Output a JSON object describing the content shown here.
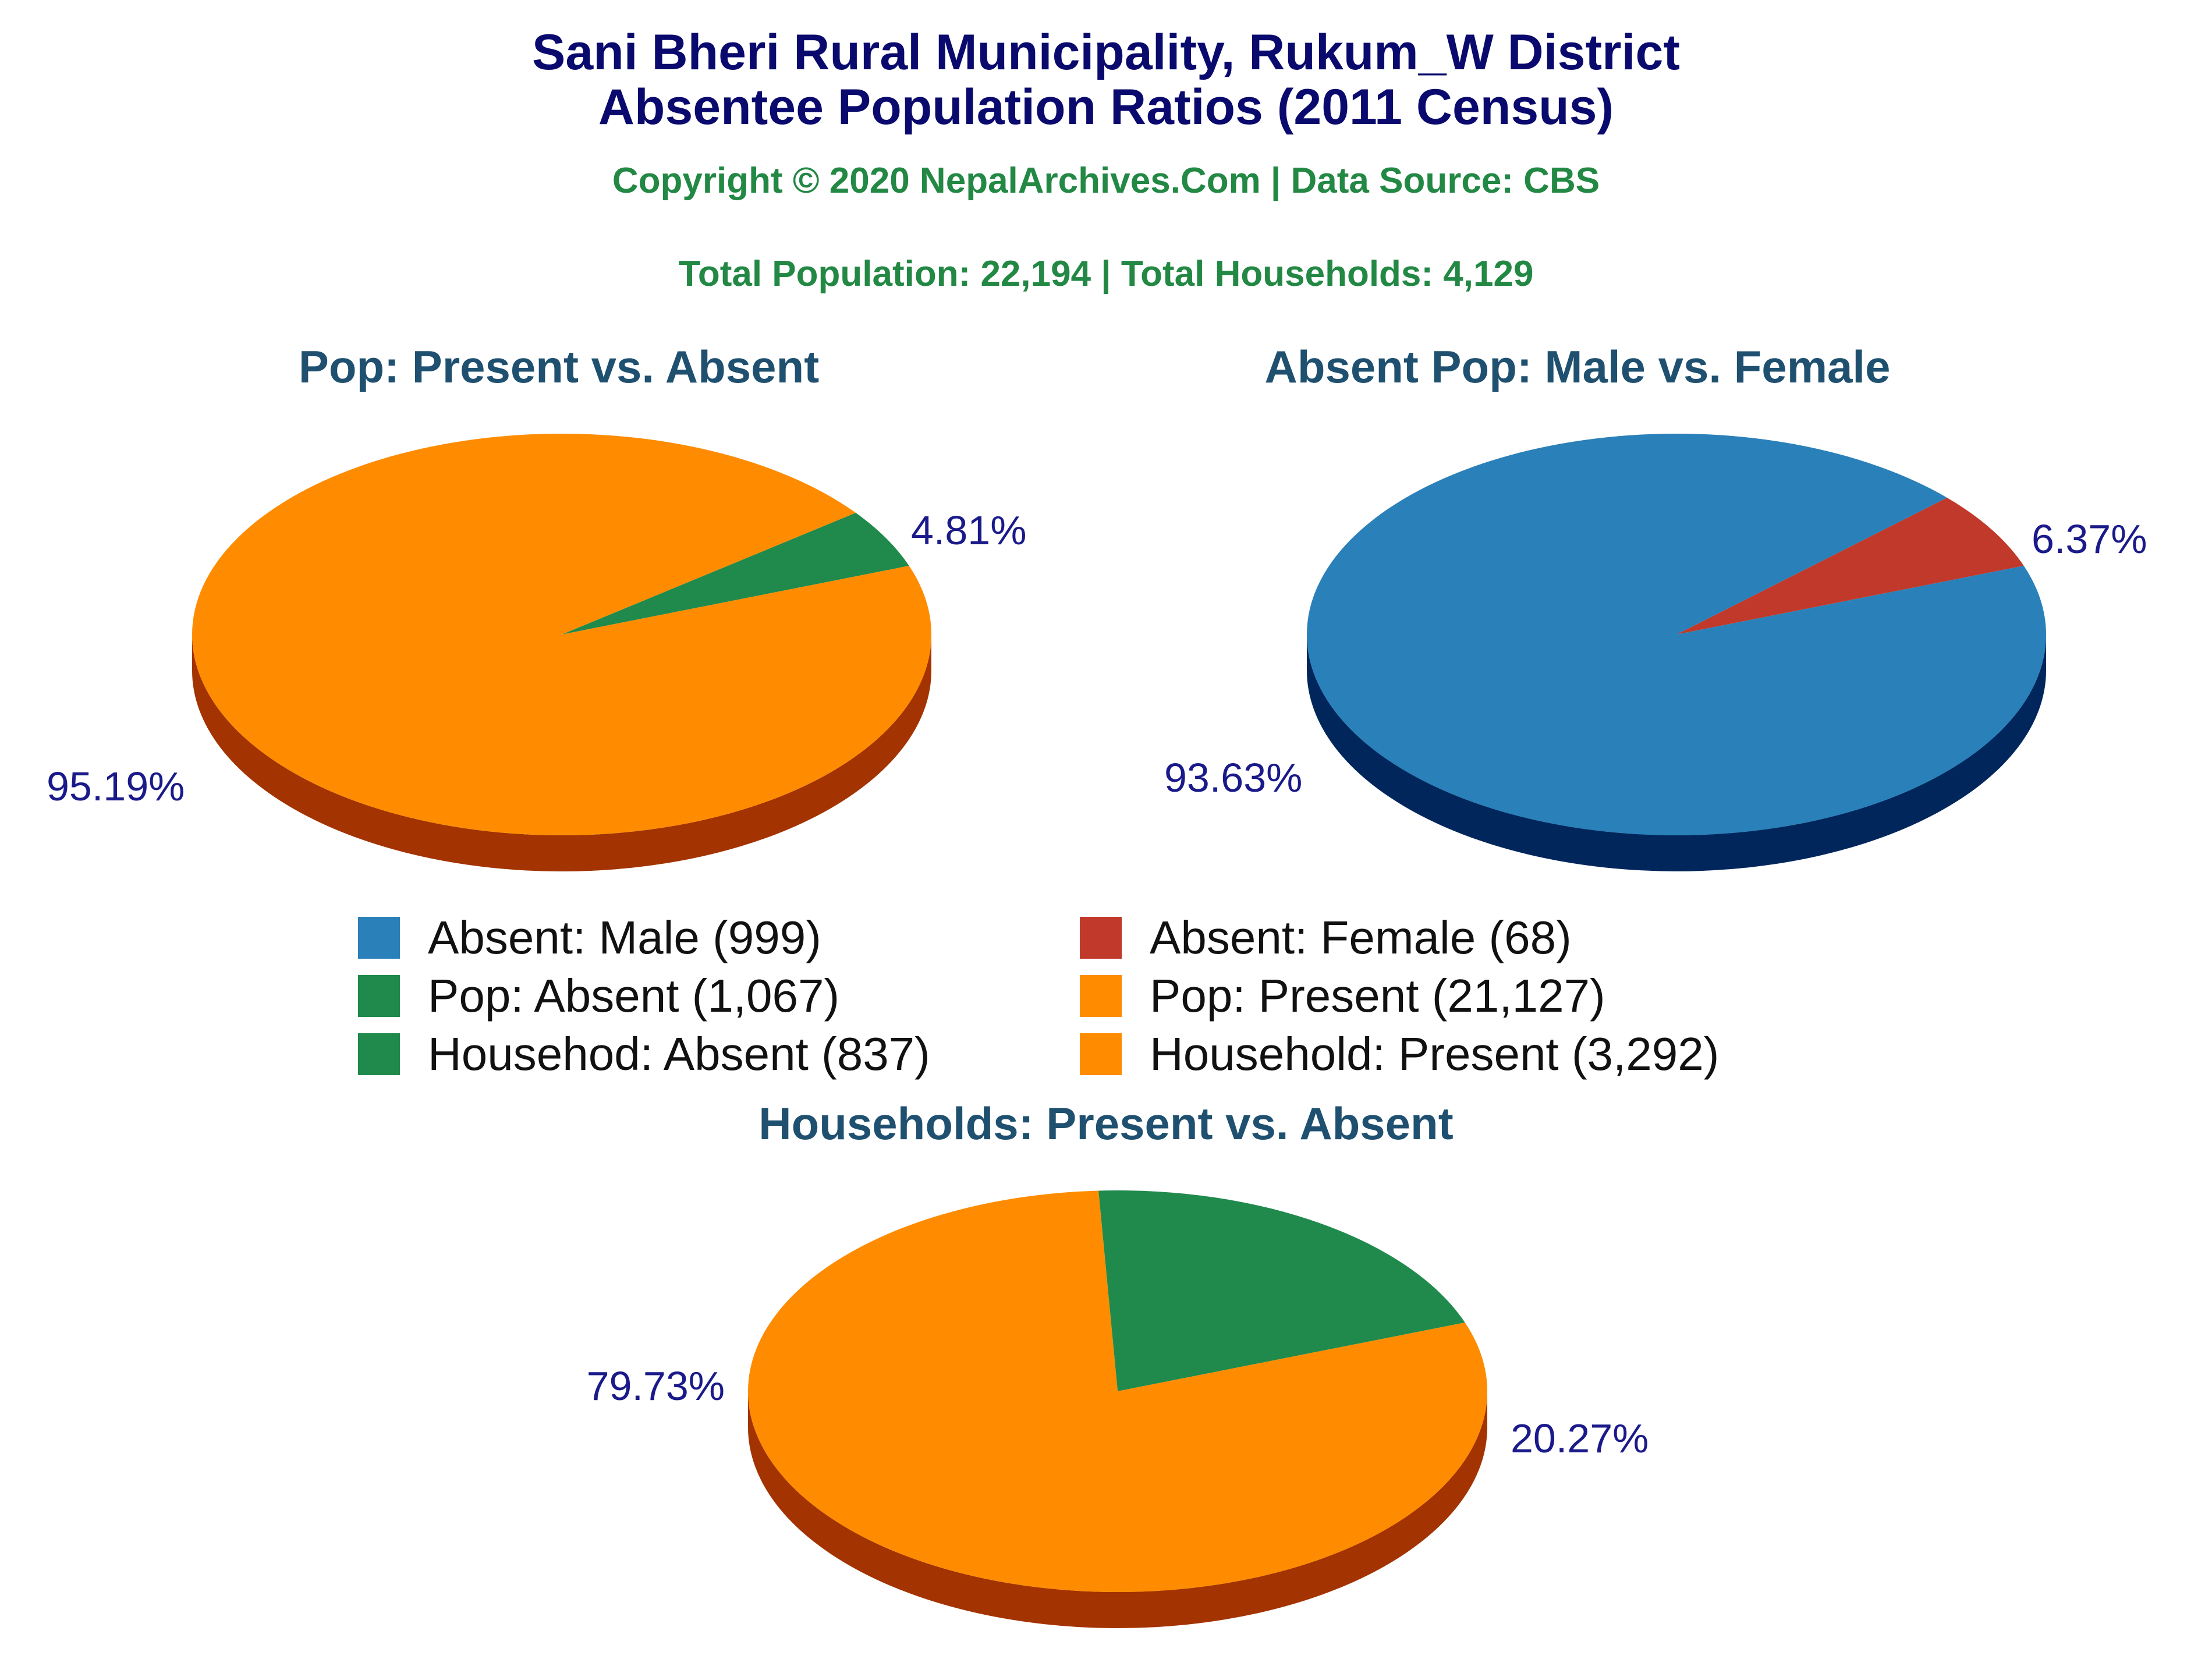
{
  "title_line1": "Sani Bheri Rural Municipality, Rukum_W District",
  "title_line2": "Absentee Population Ratios (2011 Census)",
  "copyright": "Copyright © 2020 NepalArchives.Com | Data Source: CBS",
  "totals": "Total Population: 22,194 | Total Households: 4,129",
  "chart_data": [
    {
      "type": "pie",
      "title": "Pop: Present vs. Absent",
      "slices": [
        {
          "label": "Pop: Absent",
          "value": 1067,
          "percent": "4.81%",
          "color": "#1f8a4c",
          "side": "#0f4a28"
        },
        {
          "label": "Pop: Present",
          "value": 21127,
          "percent": "95.19%",
          "color": "#ff8c00",
          "side": "#a33300"
        }
      ]
    },
    {
      "type": "pie",
      "title": "Absent Pop: Male vs. Female",
      "slices": [
        {
          "label": "Absent: Female",
          "value": 68,
          "percent": "6.37%",
          "color": "#c0392b",
          "side": "#6e1a12"
        },
        {
          "label": "Absent: Male",
          "value": 999,
          "percent": "93.63%",
          "color": "#2a80b9",
          "side": "#00265c"
        }
      ]
    },
    {
      "type": "pie",
      "title": "Households: Present vs. Absent",
      "slices": [
        {
          "label": "Househod: Absent",
          "value": 837,
          "percent": "20.27%",
          "color": "#1f8a4c",
          "side": "#003000"
        },
        {
          "label": "Household: Present",
          "value": 3292,
          "percent": "79.73%",
          "color": "#ff8c00",
          "side": "#a33300"
        }
      ]
    }
  ],
  "legend": [
    {
      "text": "Absent: Male (999)",
      "color": "#2a80b9"
    },
    {
      "text": "Absent: Female (68)",
      "color": "#c0392b"
    },
    {
      "text": "Pop: Absent (1,067)",
      "color": "#1f8a4c"
    },
    {
      "text": "Pop: Present (21,127)",
      "color": "#ff8c00"
    },
    {
      "text": "Househod: Absent (837)",
      "color": "#1f8a4c"
    },
    {
      "text": "Household: Present (3,292)",
      "color": "#ff8c00"
    }
  ]
}
